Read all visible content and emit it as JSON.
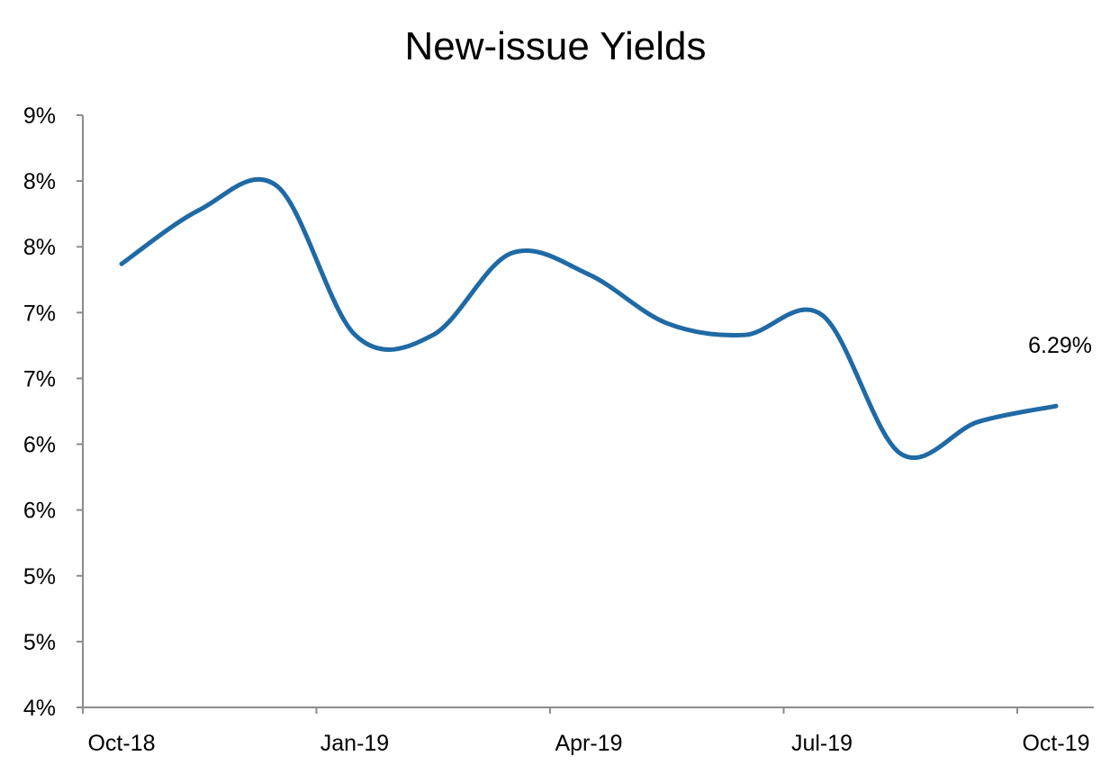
{
  "chart_data": {
    "type": "line",
    "title": "New-issue Yields",
    "xlabel": "",
    "ylabel": "",
    "ylim": [
      4.0,
      8.5
    ],
    "y_tick_values": [
      4.0,
      4.5,
      5.0,
      5.5,
      6.0,
      6.5,
      7.0,
      7.5,
      8.0,
      8.5
    ],
    "y_tick_labels": [
      "4%",
      "5%",
      "5%",
      "6%",
      "6%",
      "7%",
      "7%",
      "8%",
      "8%",
      "9%"
    ],
    "x_tick_labels": [
      "Oct-18",
      "Jan-19",
      "Apr-19",
      "Jul-19",
      "Oct-19"
    ],
    "x": [
      "Oct-18",
      "Nov-18",
      "Dec-18",
      "Jan-19",
      "Feb-19",
      "Mar-19",
      "Apr-19",
      "May-19",
      "Jun-19",
      "Jul-19",
      "Aug-19",
      "Sep-19",
      "Oct-19"
    ],
    "series": [
      {
        "color": "#1f6aa5",
        "values": [
          7.37,
          7.78,
          7.96,
          6.83,
          6.83,
          7.45,
          7.29,
          6.92,
          6.83,
          6.98,
          5.93,
          6.17,
          6.29
        ]
      }
    ],
    "annotations": [
      {
        "x": "Oct-19",
        "text": "6.29%"
      }
    ],
    "grid": false,
    "legend": "none"
  }
}
